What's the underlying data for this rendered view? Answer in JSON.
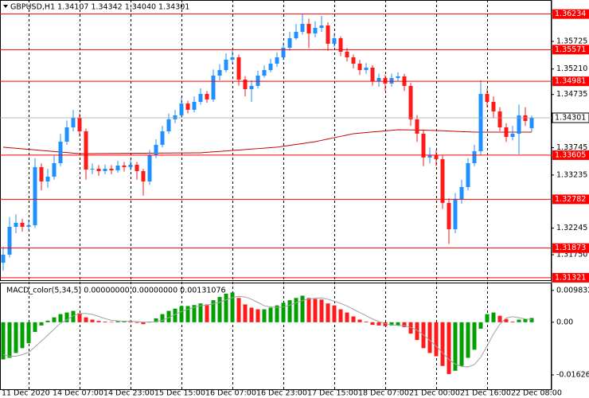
{
  "chart_data": [
    {
      "type": "candlestick",
      "title": "GBPUSD,H1  1.34107 1.34342 1.34040 1.34301",
      "categories": [
        "11 Dec 2020",
        null,
        null,
        null,
        null,
        null,
        null,
        null,
        "14 Dec 07:00",
        null,
        null,
        null,
        null,
        null,
        null,
        null,
        "14 Dec 23:00",
        null,
        null,
        null,
        null,
        null,
        null,
        null,
        "15 Dec 15:00",
        null,
        null,
        null,
        null,
        null,
        null,
        null,
        "16 Dec 07:00",
        null,
        null,
        null,
        null,
        null,
        null,
        null,
        "16 Dec 23:00",
        null,
        null,
        null,
        null,
        null,
        null,
        null,
        "17 Dec 15:00",
        null,
        null,
        null,
        null,
        null,
        null,
        null,
        "18 Dec 07:00",
        null,
        null,
        null,
        null,
        null,
        null,
        null,
        "21 Dec 00:00",
        null,
        null,
        null,
        null,
        null,
        null,
        null,
        "21 Dec 16:00",
        null,
        null,
        null,
        null,
        null,
        null,
        null,
        "22 Dec 08:00",
        null,
        null,
        null
      ],
      "open": [
        1.316,
        1.31751,
        1.3227,
        1.32344,
        1.3227,
        1.32299,
        1.33382,
        1.33115,
        1.33204,
        1.33456,
        1.33856,
        1.34123,
        1.34301,
        1.34049,
        1.33337,
        1.33352,
        1.33308,
        1.33352,
        1.33322,
        1.33411,
        1.33382,
        1.33426,
        1.33308,
        1.33115,
        1.33604,
        1.33797,
        1.34049,
        1.34272,
        1.34346,
        1.34568,
        1.3445,
        1.34598,
        1.34746,
        1.34643,
        1.35087,
        1.35191,
        1.35384,
        1.35428,
        1.35013,
        1.34835,
        1.34895,
        1.35087,
        1.35191,
        1.3531,
        1.35428,
        1.35606,
        1.35784,
        1.35903,
        1.36051,
        1.35873,
        1.35977,
        1.36022,
        1.35681,
        1.35784,
        1.35532,
        1.35428,
        1.3531,
        1.35191,
        1.35236,
        1.34984,
        1.35043,
        1.34939,
        1.35043,
        1.35073,
        1.34895,
        1.34272,
        1.34005,
        1.3356,
        1.33604,
        1.3353,
        1.32715,
        1.32225,
        1.32789,
        1.33011,
        1.33456,
        1.33678,
        1.34746,
        1.34598,
        1.3442,
        1.34123,
        1.33945,
        1.34005,
        1.34346,
        1.34107
      ],
      "high": [
        1.319,
        1.3245,
        1.325,
        1.3242,
        1.324,
        1.3355,
        1.3345,
        1.3335,
        1.336,
        1.34,
        1.3425,
        1.3445,
        1.3438,
        1.341,
        1.3345,
        1.3342,
        1.3343,
        1.3342,
        1.335,
        1.3348,
        1.3352,
        1.3348,
        1.3335,
        1.337,
        1.339,
        1.3415,
        1.3438,
        1.3445,
        1.3468,
        1.3462,
        1.347,
        1.3485,
        1.348,
        1.352,
        1.353,
        1.355,
        1.3558,
        1.3548,
        1.3508,
        1.35,
        1.3518,
        1.3528,
        1.354,
        1.3552,
        1.357,
        1.359,
        1.3605,
        1.36234,
        1.3615,
        1.361,
        1.362,
        1.3608,
        1.3588,
        1.3582,
        1.356,
        1.3548,
        1.3538,
        1.3532,
        1.3528,
        1.3512,
        1.351,
        1.3512,
        1.3515,
        1.3512,
        1.3495,
        1.3435,
        1.3408,
        1.3375,
        1.337,
        1.336,
        1.328,
        1.329,
        1.3315,
        1.3355,
        1.338,
        1.35,
        1.3485,
        1.347,
        1.345,
        1.342,
        1.3415,
        1.3455,
        1.345,
        1.34342
      ],
      "low": [
        1.3145,
        1.317,
        1.3215,
        1.3218,
        1.322,
        1.3225,
        1.3295,
        1.33,
        1.3315,
        1.334,
        1.338,
        1.3405,
        1.3395,
        1.3315,
        1.3325,
        1.3322,
        1.3325,
        1.3325,
        1.3328,
        1.333,
        1.3332,
        1.3315,
        1.3285,
        1.3305,
        1.3355,
        1.3375,
        1.34,
        1.342,
        1.343,
        1.3438,
        1.344,
        1.3455,
        1.3458,
        1.346,
        1.35,
        1.3515,
        1.353,
        1.349,
        1.347,
        1.346,
        1.3485,
        1.3505,
        1.3515,
        1.3525,
        1.3538,
        1.3555,
        1.3575,
        1.3585,
        1.356,
        1.358,
        1.359,
        1.3555,
        1.3562,
        1.3545,
        1.3535,
        1.3522,
        1.351,
        1.3512,
        1.349,
        1.3488,
        1.348,
        1.3488,
        1.3498,
        1.348,
        1.3415,
        1.3385,
        1.334,
        1.3345,
        1.334,
        1.326,
        1.3195,
        1.3215,
        1.327,
        1.3295,
        1.334,
        1.336,
        1.345,
        1.343,
        1.3405,
        1.3385,
        1.3388,
        1.3362,
        1.3415,
        1.3404
      ],
      "close": [
        1.31751,
        1.3227,
        1.32344,
        1.3227,
        1.32299,
        1.33382,
        1.33115,
        1.33204,
        1.33456,
        1.33856,
        1.34123,
        1.34301,
        1.34049,
        1.33337,
        1.33352,
        1.33308,
        1.33352,
        1.33322,
        1.33411,
        1.33382,
        1.33426,
        1.33308,
        1.33115,
        1.33604,
        1.33797,
        1.34049,
        1.34272,
        1.34346,
        1.34568,
        1.3445,
        1.34598,
        1.34746,
        1.34643,
        1.35087,
        1.35191,
        1.35384,
        1.35428,
        1.35013,
        1.34835,
        1.34895,
        1.35087,
        1.35191,
        1.3531,
        1.35428,
        1.35606,
        1.35784,
        1.35903,
        1.36051,
        1.35873,
        1.35977,
        1.36022,
        1.35681,
        1.35784,
        1.35532,
        1.35428,
        1.3531,
        1.35191,
        1.35236,
        1.34984,
        1.35043,
        1.34939,
        1.35043,
        1.35073,
        1.34895,
        1.34272,
        1.34005,
        1.3356,
        1.33604,
        1.3353,
        1.32715,
        1.32225,
        1.32789,
        1.33011,
        1.33456,
        1.33678,
        1.34746,
        1.34598,
        1.3442,
        1.34123,
        1.33945,
        1.34005,
        1.34346,
        1.34242,
        1.34301
      ],
      "line_values": [
        1.33753,
        1.33743,
        1.33733,
        1.33723,
        1.33713,
        1.33703,
        1.33693,
        1.33683,
        1.33673,
        1.33663,
        1.33653,
        1.33643,
        1.33634,
        1.33634,
        1.33634,
        1.33635,
        1.33636,
        1.33637,
        1.33637,
        1.33638,
        1.33639,
        1.3364,
        1.33641,
        1.33642,
        1.33643,
        1.33644,
        1.33645,
        1.33646,
        1.33646,
        1.33647,
        1.33648,
        1.33649,
        1.33658,
        1.33667,
        1.33675,
        1.33684,
        1.33692,
        1.33701,
        1.33709,
        1.33718,
        1.33727,
        1.33735,
        1.33744,
        1.33753,
        1.3377,
        1.33787,
        1.33804,
        1.33821,
        1.33839,
        1.33856,
        1.33881,
        1.33906,
        1.33931,
        1.33955,
        1.3398,
        1.34005,
        1.34016,
        1.34026,
        1.34037,
        1.34047,
        1.34058,
        1.34068,
        1.34079,
        1.34077,
        1.34075,
        1.34072,
        1.3407,
        1.34067,
        1.34064,
        1.34059,
        1.34054,
        1.34049,
        1.34044,
        1.34039,
        1.34034,
        1.34034,
        1.34034,
        1.34034,
        1.34034,
        1.34034,
        1.34034,
        1.34034,
        1.34034,
        1.34034
      ],
      "line_color": "#c80000",
      "up_color": "#1e90ff",
      "down_color": "#ff1a1a",
      "levels": [
        1.36234,
        1.35571,
        1.34981,
        1.33605,
        1.32782,
        1.31873,
        1.31321
      ],
      "level_color": "#ff0000",
      "last_price": 1.34301,
      "last_price_color": "#a0a0a0",
      "ylim": [
        1.31275,
        1.36496
      ],
      "yticks": [
        {
          "value": 1.3175,
          "label": "1.31750"
        },
        1.32245,
        1.33235,
        1.33745,
        1.34735,
        {
          "value": 1.3521,
          "label": "1.35210"
        },
        1.35725
      ],
      "grid": true
    },
    {
      "type": "macd",
      "title": "MACD_color(5,34,5) 0.00000000 0.00000000 0.00131076",
      "values": [
        -0.0115,
        -0.011,
        -0.0095,
        -0.008,
        -0.0065,
        -0.003,
        -0.001,
        0.0005,
        0.0015,
        0.0025,
        0.003,
        0.0035,
        0.0028,
        0.0015,
        0.0008,
        0.0004,
        0.0002,
        0.0001,
        0.0003,
        0.0004,
        0.0003,
        -0.0002,
        -0.0006,
        0.0002,
        0.0012,
        0.0025,
        0.0035,
        0.0042,
        0.005,
        0.005,
        0.0053,
        0.0058,
        0.0055,
        0.0068,
        0.0078,
        0.0088,
        0.0092,
        0.0075,
        0.0055,
        0.0045,
        0.004,
        0.004,
        0.0045,
        0.0052,
        0.006,
        0.0068,
        0.0075,
        0.0082,
        0.0075,
        0.0072,
        0.007,
        0.0058,
        0.0052,
        0.004,
        0.003,
        0.0018,
        0.0008,
        0.0002,
        -0.0008,
        -0.001,
        -0.0012,
        -0.001,
        -0.0009,
        -0.0015,
        -0.0035,
        -0.0055,
        -0.008,
        -0.0095,
        -0.0105,
        -0.0135,
        -0.016,
        -0.015,
        -0.0135,
        -0.011,
        -0.0085,
        -0.002,
        0.0025,
        0.003,
        0.002,
        0.001,
        0.0002,
        0.0008,
        0.001,
        0.00131076
      ],
      "signal": [
        -0.01,
        -0.0105,
        -0.0105,
        -0.01,
        -0.0093,
        -0.0076,
        -0.0058,
        -0.004,
        -0.0021,
        -0.0003,
        0.0007,
        0.002,
        0.0027,
        0.0027,
        0.0024,
        0.0018,
        0.0011,
        0.0006,
        0.0004,
        0.0003,
        0.0003,
        0.0002,
        0,
        0,
        0.0002,
        0.0006,
        0.0014,
        0.0024,
        0.0033,
        0.004,
        0.0046,
        0.0051,
        0.0053,
        0.0057,
        0.0062,
        0.0069,
        0.0076,
        0.008,
        0.0078,
        0.0071,
        0.0061,
        0.0051,
        0.0047,
        0.0046,
        0.0047,
        0.0053,
        0.006,
        0.0067,
        0.0072,
        0.0074,
        0.0075,
        0.0071,
        0.0065,
        0.0058,
        0.005,
        0.004,
        0.003,
        0.002,
        0.001,
        0.0002,
        -0.0004,
        -0.0008,
        -0.001,
        -0.0011,
        -0.0016,
        -0.0025,
        -0.0039,
        -0.0056,
        -0.0074,
        -0.0094,
        -0.0115,
        -0.0129,
        -0.0137,
        -0.0138,
        -0.0131,
        -0.0108,
        -0.0073,
        -0.0036,
        -0.0006,
        0.0013,
        0.0017,
        0.0014,
        0.001,
        0.0008
      ],
      "up_color": "#00a000",
      "down_color": "#ff1a1a",
      "signal_color": "#a0a0a0",
      "ylim": [
        -0.0207,
        0.012
      ],
      "yticks": [
        -0.016263,
        {
          "value": 0,
          "label": "0.00"
        },
        0.0098326
      ]
    }
  ]
}
